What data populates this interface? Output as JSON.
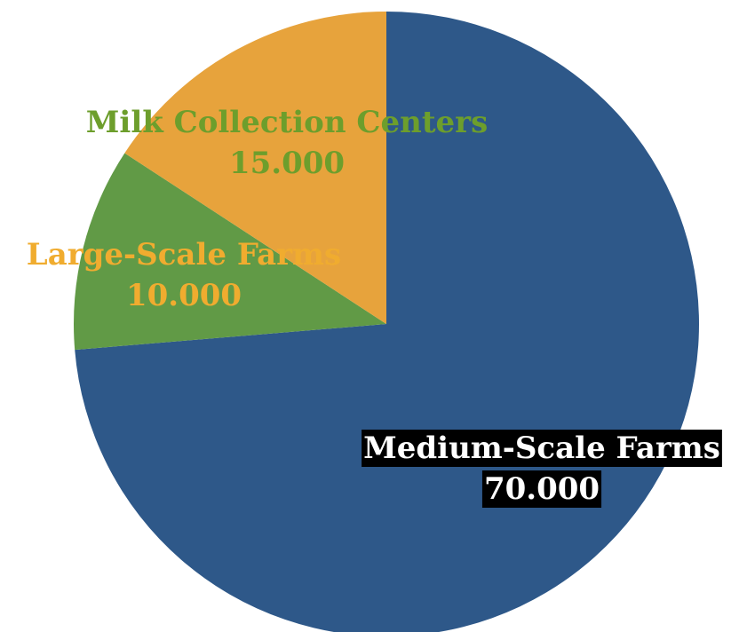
{
  "chart_data": {
    "type": "pie",
    "title": "",
    "slices": [
      {
        "label": "Medium-Scale Farms",
        "value": 70000,
        "value_text": "70.000",
        "color": "#2e5889",
        "label_color": "#ffffff",
        "label_background": "#000000"
      },
      {
        "label": "Large-Scale Farms",
        "value": 10000,
        "value_text": "10.000",
        "color": "#619a46",
        "label_color": "#f0ac2f",
        "label_background": ""
      },
      {
        "label": "Milk Collection Centers",
        "value": 15000,
        "value_text": "15.000",
        "color": "#e7a33c",
        "label_color": "#6d9e2c",
        "label_background": ""
      }
    ],
    "start_angle": "12 o'clock",
    "direction": "clockwise",
    "legend": "none"
  }
}
